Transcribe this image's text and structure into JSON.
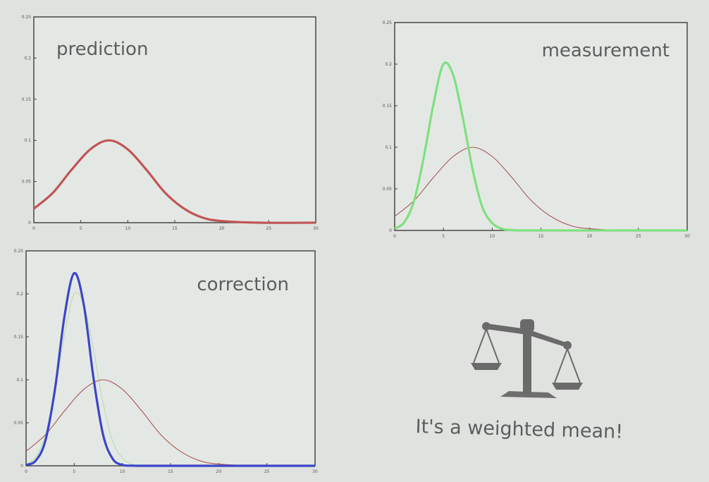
{
  "colors": {
    "prediction": "#c05555",
    "measurement": "#7fe07f",
    "correction": "#3a46c8",
    "faint_green": "#b6dcb0",
    "thin_red": "#a85555"
  },
  "icons": [
    "balance-scale-icon"
  ],
  "caption": "It's a weighted mean!",
  "chart_data": [
    {
      "type": "line",
      "title": "prediction",
      "xlabel": "",
      "ylabel": "",
      "xlim": [
        0,
        30
      ],
      "ylim": [
        0,
        0.25
      ],
      "x_ticks": [
        "0",
        "5",
        "10",
        "15",
        "20",
        "25",
        "30"
      ],
      "y_ticks": [
        "0",
        "0.05",
        "0.1",
        "0.15",
        "0.2",
        "0.25"
      ],
      "grid": false,
      "series": [
        {
          "color": "prediction",
          "thick": true,
          "x": [
            0,
            2,
            4,
            6,
            8,
            10,
            12,
            14,
            16,
            18,
            20,
            24,
            30
          ],
          "y": [
            0.017,
            0.036,
            0.064,
            0.089,
            0.1,
            0.089,
            0.064,
            0.036,
            0.017,
            0.006,
            0.002,
            0.0,
            0.0
          ]
        }
      ]
    },
    {
      "type": "line",
      "title": "measurement",
      "xlabel": "",
      "ylabel": "",
      "xlim": [
        0,
        30
      ],
      "ylim": [
        0,
        0.25
      ],
      "x_ticks": [
        "0",
        "5",
        "10",
        "15",
        "20",
        "25",
        "30"
      ],
      "y_ticks": [
        "0",
        "0.05",
        "0.1",
        "0.15",
        "0.2",
        "0.25"
      ],
      "grid": false,
      "series": [
        {
          "color": "measurement",
          "thick": true,
          "x": [
            0,
            1,
            2,
            3,
            4,
            5,
            6,
            7,
            8,
            9,
            10,
            11,
            12,
            14,
            30
          ],
          "y": [
            0.002,
            0.01,
            0.036,
            0.089,
            0.153,
            0.2,
            0.187,
            0.135,
            0.073,
            0.028,
            0.009,
            0.002,
            0.0005,
            0.0,
            0.0
          ]
        },
        {
          "color": "thin_red",
          "thick": false,
          "x": [
            0,
            2,
            4,
            6,
            8,
            10,
            12,
            14,
            16,
            18,
            20,
            24,
            30
          ],
          "y": [
            0.017,
            0.036,
            0.064,
            0.089,
            0.1,
            0.089,
            0.064,
            0.036,
            0.017,
            0.006,
            0.002,
            0.0,
            0.0
          ]
        }
      ]
    },
    {
      "type": "line",
      "title": "correction",
      "xlabel": "",
      "ylabel": "",
      "xlim": [
        0,
        30
      ],
      "ylim": [
        0,
        0.25
      ],
      "x_ticks": [
        "0",
        "5",
        "10",
        "15",
        "20",
        "25",
        "30"
      ],
      "y_ticks": [
        "0",
        "0.05",
        "0.1",
        "0.15",
        "0.2",
        "0.25"
      ],
      "grid": false,
      "series": [
        {
          "color": "correction",
          "thick": true,
          "x": [
            0,
            1,
            2,
            3,
            4,
            5,
            6,
            7,
            8,
            9,
            10,
            11,
            12,
            14,
            30
          ],
          "y": [
            0.001,
            0.006,
            0.029,
            0.089,
            0.175,
            0.224,
            0.187,
            0.102,
            0.036,
            0.008,
            0.001,
            0.0002,
            0.0,
            0.0,
            0.0
          ]
        },
        {
          "color": "faint_green",
          "thick": false,
          "x": [
            0,
            1,
            2,
            3,
            4,
            5,
            6,
            7,
            8,
            9,
            10,
            11,
            12,
            14,
            30
          ],
          "y": [
            0.002,
            0.01,
            0.036,
            0.089,
            0.153,
            0.2,
            0.187,
            0.135,
            0.073,
            0.028,
            0.009,
            0.002,
            0.0005,
            0.0,
            0.0
          ]
        },
        {
          "color": "thin_red",
          "thick": false,
          "x": [
            0,
            2,
            4,
            6,
            8,
            10,
            12,
            14,
            16,
            18,
            20,
            24,
            30
          ],
          "y": [
            0.017,
            0.036,
            0.064,
            0.089,
            0.1,
            0.089,
            0.064,
            0.036,
            0.017,
            0.006,
            0.002,
            0.0,
            0.0
          ]
        }
      ]
    }
  ]
}
